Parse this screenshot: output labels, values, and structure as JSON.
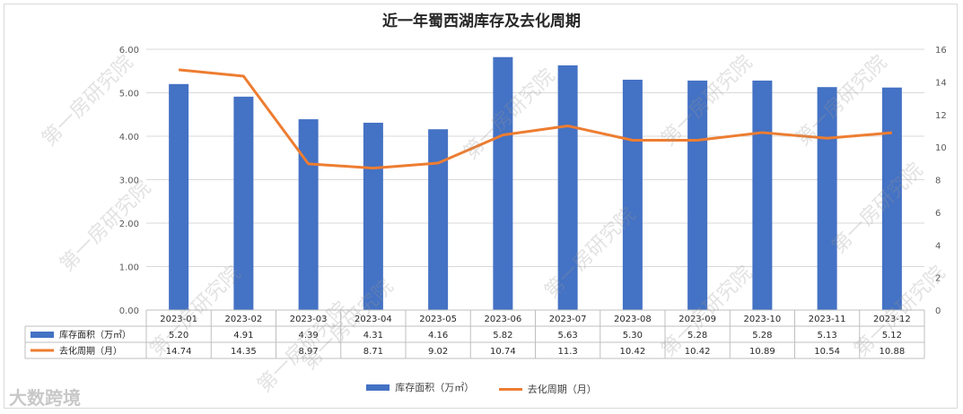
{
  "chart_data": {
    "type": "bar",
    "title": "近一年蜀西湖库存及去化周期",
    "categories": [
      "2023-01",
      "2023-02",
      "2023-03",
      "2023-04",
      "2023-05",
      "2023-06",
      "2023-07",
      "2023-08",
      "2023-09",
      "2023-10",
      "2023-11",
      "2023-12"
    ],
    "series": [
      {
        "name": "库存面积（万㎡）",
        "type": "bar",
        "axis": "left",
        "color": "#4472c4",
        "values": [
          5.2,
          4.91,
          4.39,
          4.31,
          4.16,
          5.82,
          5.63,
          5.3,
          5.28,
          5.28,
          5.13,
          5.12
        ],
        "labels": [
          "5.20",
          "4.91",
          "4.39",
          "4.31",
          "4.16",
          "5.82",
          "5.63",
          "5.30",
          "5.28",
          "5.28",
          "5.13",
          "5.12"
        ]
      },
      {
        "name": "去化周期（月）",
        "type": "line",
        "axis": "right",
        "color": "#ed7d31",
        "values": [
          14.74,
          14.35,
          8.97,
          8.71,
          9.02,
          10.74,
          11.3,
          10.42,
          10.42,
          10.89,
          10.54,
          10.88
        ],
        "labels": [
          "14.74",
          "14.35",
          "8.97",
          "8.71",
          "9.02",
          "10.74",
          "11.3",
          "10.42",
          "10.42",
          "10.89",
          "10.54",
          "10.88"
        ]
      }
    ],
    "y_left": {
      "min": 0,
      "max": 6,
      "step": 1,
      "tick_labels": [
        "0.00",
        "1.00",
        "2.00",
        "3.00",
        "4.00",
        "5.00",
        "6.00"
      ]
    },
    "y_right": {
      "min": 0,
      "max": 16,
      "step": 2,
      "tick_labels": [
        "0",
        "2",
        "4",
        "6",
        "8",
        "10",
        "12",
        "14",
        "16"
      ]
    },
    "grid": true,
    "legend_position": "bottom",
    "data_table": true
  },
  "watermark": "第一房研究院",
  "brand": "大数跨境"
}
